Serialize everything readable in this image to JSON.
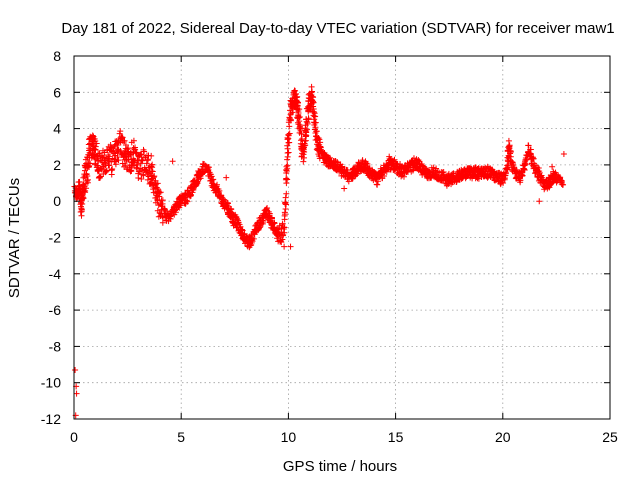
{
  "chart_data": {
    "type": "scatter",
    "title": "Day 181 of 2022, Sidereal Day-to-day VTEC variation (SDTVAR) for receiver maw1",
    "xlabel": "GPS time / hours",
    "ylabel": "SDTVAR / TECUs",
    "xlim": [
      0,
      25
    ],
    "ylim": [
      -12,
      8
    ],
    "x_ticks": [
      0,
      5,
      10,
      15,
      20,
      25
    ],
    "y_ticks": [
      -12,
      -10,
      -8,
      -6,
      -4,
      -2,
      0,
      2,
      4,
      6,
      8
    ],
    "x_tick_labels": [
      "0",
      "5",
      "10",
      "15",
      "20",
      "25"
    ],
    "y_tick_labels": [
      "-12",
      "-10",
      "-8",
      "-6",
      "-4",
      "-2",
      "0",
      "2",
      "4",
      "6",
      "8"
    ],
    "grid": true,
    "marker": "plus",
    "series": [
      {
        "name": "SDTVAR",
        "color": "#ff0000",
        "outliers": [
          [
            0.05,
            -9.3
          ],
          [
            0.1,
            -10.2
          ],
          [
            0.08,
            -11.8
          ],
          [
            0.12,
            -10.6
          ]
        ],
        "trace": [
          [
            0.05,
            0.6
          ],
          [
            0.15,
            0.2
          ],
          [
            0.25,
            0.9
          ],
          [
            0.35,
            -0.4
          ],
          [
            0.4,
            0.5
          ],
          [
            0.5,
            1.2
          ],
          [
            0.6,
            1.6
          ],
          [
            0.7,
            2.4
          ],
          [
            0.8,
            3.0
          ],
          [
            0.9,
            3.3
          ],
          [
            1.0,
            2.7
          ],
          [
            1.1,
            2.2
          ],
          [
            1.2,
            1.8
          ],
          [
            1.4,
            2.0
          ],
          [
            1.6,
            2.5
          ],
          [
            1.8,
            2.3
          ],
          [
            2.0,
            2.9
          ],
          [
            2.2,
            3.1
          ],
          [
            2.4,
            2.7
          ],
          [
            2.6,
            2.3
          ],
          [
            2.8,
            2.6
          ],
          [
            3.0,
            1.9
          ],
          [
            3.2,
            2.2
          ],
          [
            3.4,
            2.0
          ],
          [
            3.6,
            1.5
          ],
          [
            3.8,
            0.6
          ],
          [
            4.0,
            -0.1
          ],
          [
            4.2,
            -0.6
          ],
          [
            4.4,
            -0.9
          ],
          [
            4.6,
            -0.6
          ],
          [
            4.8,
            -0.2
          ],
          [
            5.0,
            0.0
          ],
          [
            5.2,
            0.2
          ],
          [
            5.4,
            0.5
          ],
          [
            5.6,
            0.9
          ],
          [
            5.8,
            1.3
          ],
          [
            6.0,
            1.7
          ],
          [
            6.2,
            1.9
          ],
          [
            6.4,
            1.2
          ],
          [
            6.6,
            0.7
          ],
          [
            6.8,
            0.3
          ],
          [
            7.0,
            -0.1
          ],
          [
            7.2,
            -0.5
          ],
          [
            7.4,
            -0.9
          ],
          [
            7.6,
            -1.2
          ],
          [
            7.8,
            -1.7
          ],
          [
            8.0,
            -2.1
          ],
          [
            8.2,
            -2.3
          ],
          [
            8.4,
            -1.8
          ],
          [
            8.6,
            -1.3
          ],
          [
            8.8,
            -1.0
          ],
          [
            9.0,
            -0.6
          ],
          [
            9.2,
            -1.1
          ],
          [
            9.4,
            -1.6
          ],
          [
            9.6,
            -2.0
          ],
          [
            9.8,
            -1.5
          ],
          [
            9.9,
            1.0
          ],
          [
            10.0,
            3.5
          ],
          [
            10.1,
            5.0
          ],
          [
            10.2,
            5.6
          ],
          [
            10.3,
            5.8
          ],
          [
            10.4,
            5.4
          ],
          [
            10.5,
            4.5
          ],
          [
            10.6,
            3.2
          ],
          [
            10.7,
            2.5
          ],
          [
            10.8,
            3.6
          ],
          [
            10.9,
            4.8
          ],
          [
            11.0,
            5.5
          ],
          [
            11.1,
            5.9
          ],
          [
            11.2,
            4.6
          ],
          [
            11.3,
            3.6
          ],
          [
            11.4,
            3.0
          ],
          [
            11.6,
            2.6
          ],
          [
            11.8,
            2.2
          ],
          [
            12.0,
            2.1
          ],
          [
            12.3,
            1.9
          ],
          [
            12.6,
            1.6
          ],
          [
            12.9,
            1.3
          ],
          [
            13.2,
            1.8
          ],
          [
            13.5,
            2.0
          ],
          [
            13.8,
            1.6
          ],
          [
            14.1,
            1.2
          ],
          [
            14.4,
            1.6
          ],
          [
            14.7,
            2.1
          ],
          [
            15.0,
            1.9
          ],
          [
            15.3,
            1.6
          ],
          [
            15.6,
            1.9
          ],
          [
            15.9,
            2.1
          ],
          [
            16.2,
            1.8
          ],
          [
            16.5,
            1.5
          ],
          [
            16.8,
            1.6
          ],
          [
            17.1,
            1.4
          ],
          [
            17.4,
            1.2
          ],
          [
            17.7,
            1.3
          ],
          [
            18.0,
            1.4
          ],
          [
            18.3,
            1.5
          ],
          [
            18.6,
            1.6
          ],
          [
            18.9,
            1.5
          ],
          [
            19.2,
            1.6
          ],
          [
            19.5,
            1.5
          ],
          [
            19.8,
            1.3
          ],
          [
            20.0,
            1.2
          ],
          [
            20.2,
            1.8
          ],
          [
            20.3,
            3.0
          ],
          [
            20.4,
            2.0
          ],
          [
            20.6,
            1.5
          ],
          [
            20.8,
            1.3
          ],
          [
            21.0,
            1.9
          ],
          [
            21.2,
            3.0
          ],
          [
            21.4,
            2.2
          ],
          [
            21.6,
            1.6
          ],
          [
            21.8,
            1.2
          ],
          [
            22.0,
            0.9
          ],
          [
            22.2,
            1.1
          ],
          [
            22.4,
            1.4
          ],
          [
            22.6,
            1.2
          ],
          [
            22.8,
            1.1
          ]
        ],
        "extra_points": [
          [
            22.85,
            2.6
          ],
          [
            22.3,
            1.9
          ],
          [
            21.7,
            0.0
          ],
          [
            9.8,
            -2.5
          ],
          [
            10.1,
            -2.5
          ],
          [
            0.35,
            -0.8
          ],
          [
            7.1,
            1.3
          ],
          [
            12.6,
            0.7
          ],
          [
            3.6,
            2.5
          ],
          [
            4.6,
            2.2
          ]
        ]
      }
    ]
  }
}
